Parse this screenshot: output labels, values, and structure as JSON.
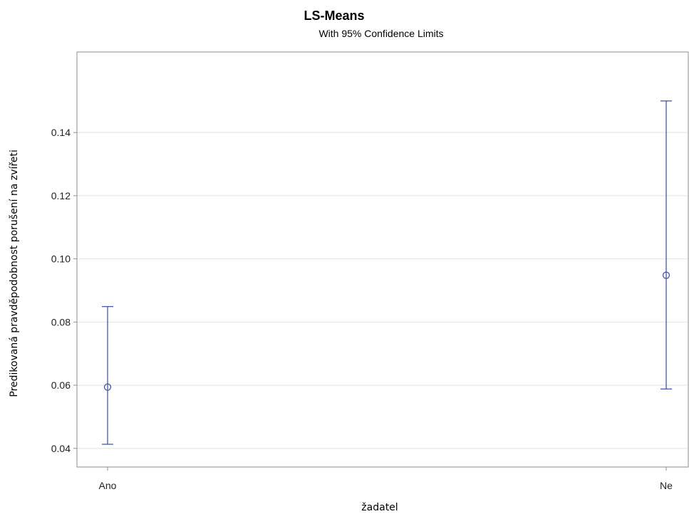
{
  "chart_data": {
    "type": "scatter",
    "title": "LS-Means",
    "subtitle": "With 95% Confidence Limits",
    "xlabel": "žadatel",
    "ylabel": "Predikovaná pravděpodobnost porušení na zvířeti",
    "categories": [
      "Ano",
      "Ne"
    ],
    "series": [
      {
        "values": [
          0.0594,
          0.0948
        ],
        "lower": [
          0.0413,
          0.0588
        ],
        "upper": [
          0.0849,
          0.15
        ]
      }
    ],
    "ylim": [
      0.0341,
      0.1655
    ],
    "yticks": [
      0.04,
      0.06,
      0.08,
      0.1,
      0.12,
      0.14
    ],
    "ytick_labels": [
      "0.04",
      "0.06",
      "0.08",
      "0.10",
      "0.12",
      "0.14"
    ],
    "grid": true,
    "color": "#4a58a0"
  }
}
